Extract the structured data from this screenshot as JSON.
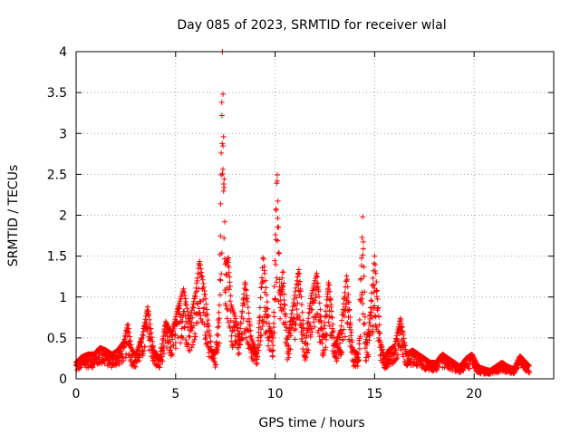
{
  "chart_data": {
    "type": "scatter",
    "title": "Day 085 of 2023, SRMTID for receiver wlal",
    "xlabel": "GPS time / hours",
    "ylabel": "SRMTID / TECUs",
    "xlim": [
      0,
      24
    ],
    "ylim": [
      0,
      4
    ],
    "xticks": [
      0,
      5,
      10,
      15,
      20
    ],
    "yticks": [
      0,
      0.5,
      1,
      1.5,
      2,
      2.5,
      3,
      3.5,
      4
    ],
    "xtick_labels": [
      "0",
      "5",
      "10",
      "15",
      "20"
    ],
    "ytick_labels": [
      "0",
      "0.5",
      "1",
      "1.5",
      "2",
      "2.5",
      "3",
      "3.5",
      "4"
    ],
    "grid": true,
    "marker": "+",
    "marker_color": "#ff0000",
    "series_name": "SRMTID",
    "envelope": {
      "x": [
        0.0,
        0.3,
        0.6,
        0.9,
        1.2,
        1.5,
        1.8,
        2.1,
        2.4,
        2.6,
        2.8,
        3.0,
        3.3,
        3.6,
        3.9,
        4.2,
        4.5,
        4.8,
        5.1,
        5.4,
        5.7,
        6.0,
        6.2,
        6.5,
        6.8,
        7.0,
        7.2,
        7.35,
        7.5,
        7.65,
        7.8,
        8.0,
        8.2,
        8.5,
        8.8,
        9.1,
        9.4,
        9.7,
        9.9,
        10.1,
        10.25,
        10.4,
        10.6,
        10.9,
        11.2,
        11.5,
        11.8,
        12.1,
        12.4,
        12.7,
        13.0,
        13.3,
        13.6,
        13.9,
        14.2,
        14.4,
        14.55,
        14.7,
        15.0,
        15.3,
        15.5,
        15.7,
        16.0,
        16.3,
        16.6,
        16.9,
        17.2,
        17.5,
        17.8,
        18.1,
        18.4,
        18.7,
        19.0,
        19.3,
        19.6,
        19.9,
        20.2,
        20.5,
        20.8,
        21.1,
        21.4,
        21.7,
        22.0,
        22.3,
        22.6,
        22.8
      ],
      "y": [
        0.2,
        0.27,
        0.3,
        0.3,
        0.38,
        0.35,
        0.3,
        0.35,
        0.45,
        0.68,
        0.35,
        0.3,
        0.5,
        0.88,
        0.35,
        0.25,
        0.7,
        0.55,
        0.85,
        1.1,
        0.7,
        1.05,
        1.45,
        1.0,
        0.35,
        0.3,
        0.9,
        4.0,
        1.4,
        1.48,
        0.9,
        0.75,
        0.5,
        1.2,
        0.5,
        0.3,
        1.52,
        0.65,
        0.5,
        2.6,
        1.0,
        1.35,
        0.45,
        0.9,
        1.35,
        0.4,
        1.0,
        1.3,
        0.5,
        1.2,
        0.4,
        0.6,
        1.28,
        0.35,
        0.3,
        1.98,
        0.45,
        0.6,
        1.5,
        0.45,
        0.25,
        0.35,
        0.4,
        0.75,
        0.3,
        0.35,
        0.3,
        0.25,
        0.2,
        0.2,
        0.3,
        0.25,
        0.2,
        0.15,
        0.25,
        0.3,
        0.15,
        0.12,
        0.1,
        0.15,
        0.2,
        0.15,
        0.12,
        0.28,
        0.2,
        0.15
      ]
    }
  }
}
